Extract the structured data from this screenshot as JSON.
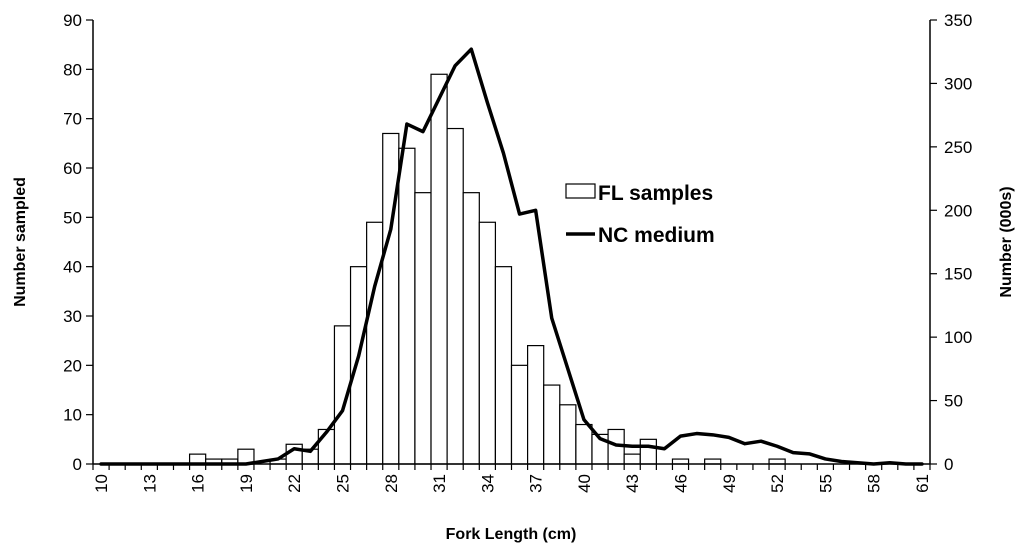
{
  "chart_data": {
    "type": "bar",
    "title": "",
    "xlabel": "Fork Length (cm)",
    "ylabel": "Number sampled",
    "y2label": "Number (000s)",
    "xlim": [
      10,
      61
    ],
    "ylim": [
      0,
      90
    ],
    "y2lim": [
      0,
      350
    ],
    "x_ticks": [
      10,
      13,
      16,
      19,
      22,
      25,
      28,
      31,
      34,
      37,
      40,
      43,
      46,
      49,
      52,
      55,
      58,
      61
    ],
    "y_ticks": [
      0,
      10,
      20,
      30,
      40,
      50,
      60,
      70,
      80,
      90
    ],
    "y2_ticks": [
      0,
      50,
      100,
      150,
      200,
      250,
      300,
      350
    ],
    "legend_position": "right",
    "series": [
      {
        "name": "FL samples",
        "type": "bar",
        "axis": "left",
        "x": [
          10,
          11,
          12,
          13,
          14,
          15,
          16,
          17,
          18,
          19,
          20,
          21,
          22,
          23,
          24,
          25,
          26,
          27,
          28,
          29,
          30,
          31,
          32,
          33,
          34,
          35,
          36,
          37,
          38,
          39,
          40,
          41,
          42,
          43,
          44,
          45,
          46,
          47,
          48,
          49,
          50,
          51,
          52,
          53,
          54,
          55,
          56,
          57,
          58,
          59,
          60,
          61
        ],
        "values": [
          0,
          0,
          0,
          0,
          0,
          0,
          2,
          1,
          1,
          3,
          0,
          1,
          4,
          3,
          7,
          28,
          40,
          49,
          67,
          64,
          55,
          79,
          68,
          55,
          49,
          40,
          20,
          24,
          16,
          12,
          8,
          6,
          7,
          2,
          5,
          0,
          1,
          0,
          1,
          0,
          0,
          0,
          1,
          0,
          0,
          0,
          0,
          0,
          0,
          0,
          0,
          0
        ]
      },
      {
        "name": "NC medium",
        "type": "line",
        "axis": "right",
        "x": [
          10,
          11,
          12,
          13,
          14,
          15,
          16,
          17,
          18,
          19,
          20,
          21,
          22,
          23,
          24,
          25,
          26,
          27,
          28,
          29,
          30,
          31,
          32,
          33,
          34,
          35,
          36,
          37,
          38,
          39,
          40,
          41,
          42,
          43,
          44,
          45,
          46,
          47,
          48,
          49,
          50,
          51,
          52,
          53,
          54,
          55,
          56,
          57,
          58,
          59,
          60,
          61
        ],
        "values": [
          0,
          0,
          0,
          0,
          0,
          0,
          0,
          0,
          0,
          0,
          2,
          4,
          12,
          10,
          25,
          42,
          85,
          140,
          185,
          268,
          262,
          288,
          314,
          327,
          285,
          245,
          197,
          200,
          115,
          75,
          35,
          20,
          15,
          14,
          14,
          12,
          22,
          24,
          23,
          21,
          16,
          18,
          14,
          9,
          8,
          4,
          2,
          1,
          0,
          1,
          0,
          0
        ]
      }
    ]
  }
}
